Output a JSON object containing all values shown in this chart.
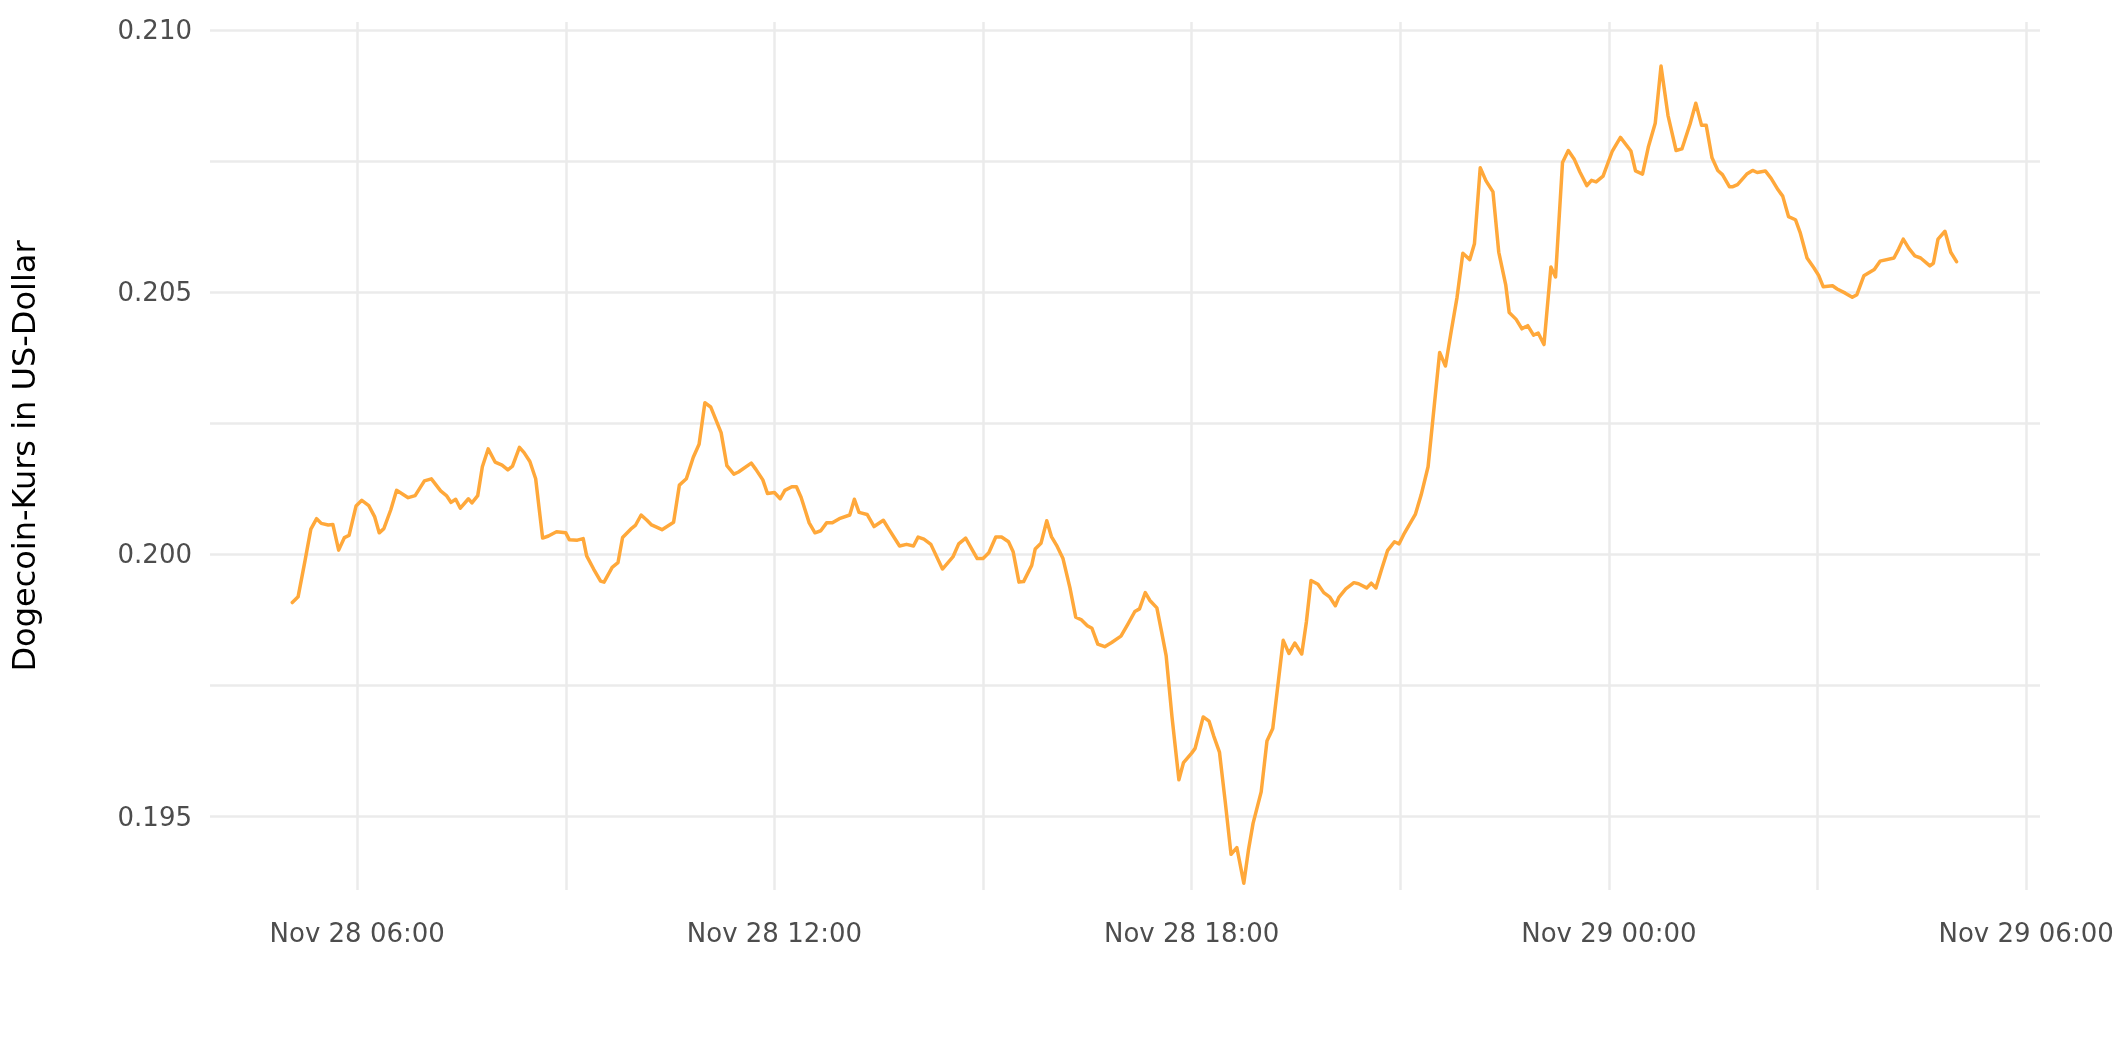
{
  "chart_data": {
    "type": "line",
    "ylabel": "Dogecoin-Kurs in US-Dollar",
    "color": "#ffa83a",
    "grid": true,
    "marker": "none",
    "line_style": "solid",
    "xlim": [
      "--11-28T03:53",
      "--11-29T06:12"
    ],
    "xticks": [
      {
        "value": "--11-28T06:00",
        "label": "Nov 28 06:00"
      },
      {
        "value": "--11-28T09:00",
        "label": null
      },
      {
        "value": "--11-28T12:00",
        "label": "Nov 28 12:00"
      },
      {
        "value": "--11-28T15:00",
        "label": null
      },
      {
        "value": "--11-28T18:00",
        "label": "Nov 28 18:00"
      },
      {
        "value": "--11-28T21:00",
        "label": null
      },
      {
        "value": "--11-29T00:00",
        "label": "Nov 29 00:00"
      },
      {
        "value": "--11-29T03:00",
        "label": null
      },
      {
        "value": "--11-29T06:00",
        "label": "Nov 29 06:00"
      }
    ],
    "ylim": [
      0.1936,
      0.21015
    ],
    "yticks": [
      0.195,
      {
        "value": 0.1975,
        "label": null
      },
      {
        "value": 0.2,
        "label": "0.200"
      },
      {
        "value": 0.2025,
        "label": null
      },
      0.205,
      {
        "value": 0.2075,
        "label": null
      },
      {
        "value": 0.21,
        "label": "0.210"
      }
    ],
    "x": [
      "--11-28T05:04",
      "--11-28T05:09",
      "--11-28T05:15",
      "--11-28T05:20",
      "--11-28T05:25",
      "--11-28T05:29",
      "--11-28T05:35",
      "--11-28T05:39",
      "--11-28T05:44",
      "--11-28T05:49",
      "--11-28T05:53",
      "--11-28T05:59",
      "--11-28T06:04",
      "--11-28T06:10",
      "--11-28T06:15",
      "--11-28T06:19",
      "--11-28T06:23",
      "--11-28T06:29",
      "--11-28T06:34",
      "--11-28T06:44",
      "--11-28T06:50",
      "--11-28T06:58",
      "--11-28T07:04",
      "--11-28T07:12",
      "--11-28T07:17",
      "--11-28T07:21",
      "--11-28T07:25",
      "--11-28T07:29",
      "--11-28T07:36",
      "--11-28T07:39",
      "--11-28T07:44",
      "--11-28T07:48",
      "--11-28T07:53",
      "--11-28T07:59",
      "--11-28T08:05",
      "--11-28T08:10",
      "--11-28T08:14",
      "--11-28T08:20",
      "--11-28T08:24",
      "--11-28T08:29",
      "--11-28T08:34",
      "--11-28T08:40",
      "--11-28T08:45",
      "--11-28T08:52",
      "--11-28T09:00",
      "--11-28T09:03",
      "--11-28T09:10",
      "--11-28T09:15",
      "--11-28T09:18",
      "--11-28T09:24",
      "--11-28T09:30",
      "--11-28T09:33",
      "--11-28T09:40",
      "--11-28T09:45",
      "--11-28T09:49",
      "--11-28T09:56",
      "--11-28T10:00",
      "--11-28T10:05",
      "--11-28T10:10",
      "--11-28T10:14",
      "--11-28T10:23",
      "--11-28T10:33",
      "--11-28T10:38",
      "--11-28T10:44",
      "--11-28T10:50",
      "--11-28T10:55",
      "--11-28T11:00",
      "--11-28T11:05",
      "--11-28T11:14",
      "--11-28T11:19",
      "--11-28T11:25",
      "--11-28T11:29",
      "--11-28T11:40",
      "--11-28T11:44",
      "--11-28T11:50",
      "--11-28T11:54",
      "--11-28T12:00",
      "--11-28T12:05",
      "--11-28T12:09",
      "--11-28T12:15",
      "--11-28T12:19",
      "--11-28T12:23",
      "--11-28T12:30",
      "--11-28T12:35",
      "--11-28T12:40",
      "--11-28T12:45",
      "--11-28T12:50",
      "--11-28T12:56",
      "--11-28T13:05",
      "--11-28T13:09",
      "--11-28T13:13",
      "--11-28T13:20",
      "--11-28T13:26",
      "--11-28T13:34",
      "--11-28T13:39",
      "--11-28T13:48",
      "--11-28T13:54",
      "--11-28T14:00",
      "--11-28T14:04",
      "--11-28T14:09",
      "--11-28T14:15",
      "--11-28T14:25",
      "--11-28T14:34",
      "--11-28T14:39",
      "--11-28T14:45",
      "--11-28T14:55",
      "--11-28T15:00",
      "--11-28T15:05",
      "--11-28T15:11",
      "--11-28T15:16",
      "--11-28T15:22",
      "--11-28T15:26",
      "--11-28T15:31",
      "--11-28T15:35",
      "--11-28T15:42",
      "--11-28T15:45",
      "--11-28T15:50",
      "--11-28T15:55",
      "--11-28T15:59",
      "--11-28T16:04",
      "--11-28T16:09",
      "--11-28T16:15",
      "--11-28T16:20",
      "--11-28T16:25",
      "--11-28T16:30",
      "--11-28T16:34",
      "--11-28T16:39",
      "--11-28T16:45",
      "--11-28T16:51",
      "--11-28T16:59",
      "--11-28T17:05",
      "--11-28T17:11",
      "--11-28T17:15",
      "--11-28T17:20",
      "--11-28T17:24",
      "--11-28T17:30",
      "--11-28T17:34",
      "--11-28T17:38",
      "--11-28T17:43",
      "--11-28T17:49",
      "--11-28T17:53",
      "--11-28T18:00",
      "--11-28T18:03",
      "--11-28T18:10",
      "--11-28T18:15",
      "--11-28T18:19",
      "--11-28T18:24",
      "--11-28T18:29",
      "--11-28T18:34",
      "--11-28T18:39",
      "--11-28T18:45",
      "--11-28T18:49",
      "--11-28T18:53",
      "--11-28T19:00",
      "--11-28T19:05",
      "--11-28T19:10",
      "--11-28T19:19",
      "--11-28T19:24",
      "--11-28T19:29",
      "--11-28T19:35",
      "--11-28T19:39",
      "--11-28T19:43",
      "--11-28T19:49",
      "--11-28T19:54",
      "--11-28T19:59",
      "--11-28T20:04",
      "--11-28T20:07",
      "--11-28T20:13",
      "--11-28T20:20",
      "--11-28T20:24",
      "--11-28T20:31",
      "--11-28T20:35",
      "--11-28T20:39",
      "--11-28T20:44",
      "--11-28T20:49",
      "--11-28T20:55",
      "--11-28T20:59",
      "--11-28T21:03",
      "--11-28T21:08",
      "--11-28T21:13",
      "--11-28T21:18",
      "--11-28T21:24",
      "--11-28T21:34",
      "--11-28T21:39",
      "--11-28T21:44",
      "--11-28T21:49",
      "--11-28T21:54",
      "--11-28T22:00",
      "--11-28T22:04",
      "--11-28T22:09",
      "--11-28T22:14",
      "--11-28T22:20",
      "--11-28T22:25",
      "--11-28T22:31",
      "--11-28T22:34",
      "--11-28T22:40",
      "--11-28T22:45",
      "--11-28T22:50",
      "--11-28T22:55",
      "--11-28T22:59",
      "--11-28T23:04",
      "--11-28T23:10",
      "--11-28T23:14",
      "--11-28T23:20",
      "--11-28T23:25",
      "--11-28T23:30",
      "--11-28T23:35",
      "--11-28T23:41",
      "--11-28T23:45",
      "--11-28T23:49",
      "--11-28T23:55",
      "--11-29T00:03",
      "--11-29T00:10",
      "--11-29T00:19",
      "--11-29T00:23",
      "--11-29T00:29",
      "--11-29T00:34",
      "--11-29T00:40",
      "--11-29T00:45",
      "--11-29T00:51",
      "--11-29T00:58",
      "--11-29T01:03",
      "--11-29T01:10",
      "--11-29T01:15",
      "--11-29T01:20",
      "--11-29T01:24",
      "--11-29T01:29",
      "--11-29T01:34",
      "--11-29T01:38",
      "--11-29T01:44",
      "--11-29T01:47",
      "--11-29T01:51",
      "--11-29T01:59",
      "--11-29T02:04",
      "--11-29T02:08",
      "--11-29T02:15",
      "--11-29T02:20",
      "--11-29T02:26",
      "--11-29T02:30",
      "--11-29T02:35",
      "--11-29T02:41",
      "--11-29T02:45",
      "--11-29T02:51",
      "--11-29T02:57",
      "--11-29T03:01",
      "--11-29T03:05",
      "--11-29T03:13",
      "--11-29T03:17",
      "--11-29T03:24",
      "--11-29T03:30",
      "--11-29T03:34",
      "--11-29T03:40",
      "--11-29T03:49",
      "--11-29T03:54",
      "--11-29T04:06",
      "--11-29T04:10",
      "--11-29T04:14",
      "--11-29T04:19",
      "--11-29T04:24",
      "--11-29T04:29",
      "--11-29T04:37",
      "--11-29T04:40",
      "--11-29T04:44",
      "--11-29T04:50",
      "--11-29T04:55",
      "--11-29T05:00"
    ],
    "values": [
      0.19908,
      0.19919,
      0.19988,
      0.20048,
      0.20068,
      0.20059,
      0.20056,
      0.20057,
      0.20008,
      0.20032,
      0.20036,
      0.20092,
      0.20103,
      0.20093,
      0.20072,
      0.20041,
      0.20049,
      0.20085,
      0.20122,
      0.20108,
      0.20112,
      0.2014,
      0.20144,
      0.20121,
      0.20112,
      0.20099,
      0.20105,
      0.20088,
      0.20106,
      0.20098,
      0.20112,
      0.20167,
      0.20201,
      0.20176,
      0.2017,
      0.20161,
      0.20168,
      0.20204,
      0.20194,
      0.20177,
      0.20144,
      0.20031,
      0.20035,
      0.20043,
      0.20041,
      0.20028,
      0.20027,
      0.2003,
      0.19997,
      0.19972,
      0.19949,
      0.19947,
      0.19975,
      0.19984,
      0.20032,
      0.20048,
      0.20055,
      0.20075,
      0.20065,
      0.20056,
      0.20047,
      0.20061,
      0.20132,
      0.20144,
      0.20185,
      0.2021,
      0.20289,
      0.20281,
      0.20232,
      0.20169,
      0.20153,
      0.20157,
      0.20174,
      0.20162,
      0.20142,
      0.20116,
      0.20118,
      0.20106,
      0.20122,
      0.20129,
      0.20129,
      0.20109,
      0.2006,
      0.20041,
      0.20045,
      0.2006,
      0.2006,
      0.20068,
      0.20075,
      0.20105,
      0.2008,
      0.20076,
      0.20053,
      0.20065,
      0.20047,
      0.20016,
      0.20019,
      0.20016,
      0.20033,
      0.20029,
      0.20019,
      0.19972,
      0.19995,
      0.2002,
      0.20031,
      0.19992,
      0.19992,
      0.20003,
      0.20033,
      0.20033,
      0.20024,
      0.20005,
      0.19947,
      0.19948,
      0.19979,
      0.2001,
      0.20021,
      0.20064,
      0.20034,
      0.20015,
      0.19992,
      0.19936,
      0.1988,
      0.19875,
      0.19864,
      0.19859,
      0.19829,
      0.19824,
      0.19832,
      0.19844,
      0.19867,
      0.19891,
      0.19896,
      0.19927,
      0.19912,
      0.19898,
      0.19853,
      0.19807,
      0.19691,
      0.1957,
      0.19603,
      0.19621,
      0.1963,
      0.1969,
      0.19682,
      0.19654,
      0.19623,
      0.19528,
      0.19428,
      0.19441,
      0.19373,
      0.19436,
      0.19487,
      0.19547,
      0.19644,
      0.19668,
      0.19836,
      0.19811,
      0.19831,
      0.1981,
      0.19871,
      0.1995,
      0.19943,
      0.19927,
      0.19919,
      0.19902,
      0.19918,
      0.19934,
      0.19946,
      0.19944,
      0.19936,
      0.19945,
      0.19936,
      0.19972,
      0.20007,
      0.20024,
      0.2002,
      0.20038,
      0.20057,
      0.20076,
      0.20113,
      0.20167,
      0.20385,
      0.20359,
      0.20426,
      0.2049,
      0.20574,
      0.20562,
      0.20592,
      0.20737,
      0.20712,
      0.20691,
      0.20576,
      0.20514,
      0.20461,
      0.20448,
      0.2043,
      0.20436,
      0.20418,
      0.20422,
      0.204,
      0.20548,
      0.20529,
      0.20747,
      0.2077,
      0.20754,
      0.20729,
      0.20703,
      0.20713,
      0.2071,
      0.20721,
      0.20769,
      0.20795,
      0.20769,
      0.20731,
      0.20725,
      0.20776,
      0.20822,
      0.20931,
      0.20837,
      0.2077,
      0.20773,
      0.2082,
      0.2086,
      0.20818,
      0.20818,
      0.20756,
      0.20732,
      0.20724,
      0.20701,
      0.20701,
      0.20705,
      0.20725,
      0.20732,
      0.20728,
      0.20731,
      0.20717,
      0.20695,
      0.20683,
      0.20644,
      0.20638,
      0.20614,
      0.20565,
      0.20546,
      0.20532,
      0.2051,
      0.20512,
      0.20506,
      0.20498,
      0.2049,
      0.20495,
      0.20531,
      0.20543,
      0.20559,
      0.20565,
      0.20582,
      0.20601,
      0.20583,
      0.20569,
      0.20565,
      0.2055,
      0.20555,
      0.20601,
      0.20616,
      0.20576,
      0.20558
    ]
  }
}
